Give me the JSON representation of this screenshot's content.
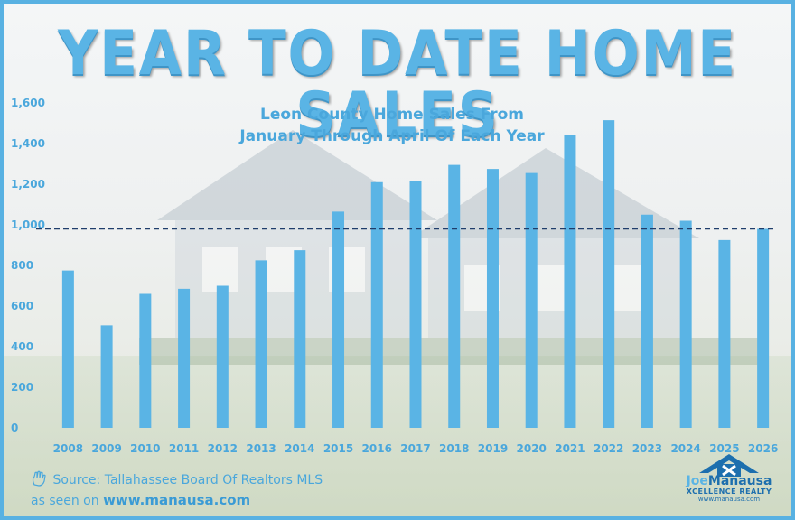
{
  "header": {
    "title": "YEAR TO DATE HOME SALES"
  },
  "chart_data": {
    "type": "bar",
    "title": "Leon County Home Sales From",
    "subtitle": "January Through April Of Each Year",
    "categories": [
      "2008",
      "2009",
      "2010",
      "2011",
      "2012",
      "2013",
      "2014",
      "2015",
      "2016",
      "2017",
      "2018",
      "2019",
      "2020",
      "2021",
      "2022",
      "2023",
      "2024",
      "2025",
      "2026"
    ],
    "values": [
      775,
      505,
      660,
      685,
      700,
      825,
      875,
      1065,
      1210,
      1215,
      1295,
      1275,
      1255,
      1440,
      1515,
      1050,
      1020,
      925,
      980
    ],
    "ylim": [
      0,
      1600
    ],
    "yticks": [
      0,
      200,
      400,
      600,
      800,
      1000,
      1200,
      1400,
      1600
    ],
    "ytick_labels": [
      "0",
      "200",
      "400",
      "600",
      "800",
      "1,000",
      "1,200",
      "1,400",
      "1,600"
    ],
    "reference_line": 980,
    "bar_color": "#5ab4e5",
    "reference_line_color": "#1f3d6b",
    "grid": false,
    "xlabel": "",
    "ylabel": ""
  },
  "footer": {
    "source": "Source: Tallahassee Board Of Realtors MLS",
    "seen_on": "as seen on",
    "link": "www.manausa.com"
  },
  "logo": {
    "brand_first": "Joe",
    "brand_last": "Manausa",
    "tagline": "XCELLENCE REALTY",
    "url": "www.manausa.com"
  }
}
